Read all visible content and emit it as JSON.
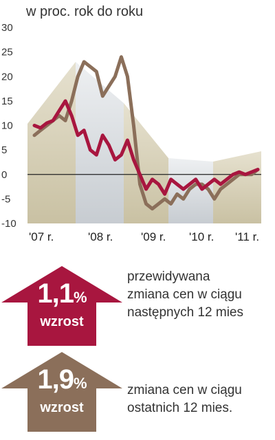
{
  "chart_data": {
    "type": "line",
    "subtitle": "w proc. rok do roku",
    "ylim": [
      -10,
      30
    ],
    "yticks": [
      "30",
      "25",
      "20",
      "15",
      "10",
      "5",
      "0",
      "-5",
      "-10"
    ],
    "yvalues": [
      30,
      25,
      20,
      15,
      10,
      5,
      0,
      -5,
      -10
    ],
    "xlabels": [
      "'07 r.",
      "'08 r.",
      "'09 r.",
      "'10 r.",
      "'11 r."
    ],
    "series": [
      {
        "color": "#a8163f",
        "points": [
          [
            0,
            10
          ],
          [
            1,
            9.5
          ],
          [
            2,
            10.5
          ],
          [
            3,
            11
          ],
          [
            4,
            13
          ],
          [
            5,
            15
          ],
          [
            6,
            12
          ],
          [
            7,
            8
          ],
          [
            8,
            9
          ],
          [
            9,
            5
          ],
          [
            10,
            4
          ],
          [
            11,
            8
          ],
          [
            12,
            6
          ],
          [
            13,
            3
          ],
          [
            14,
            4
          ],
          [
            15,
            7
          ],
          [
            16,
            3
          ],
          [
            17,
            0
          ],
          [
            18,
            -3
          ],
          [
            19,
            -1
          ],
          [
            20,
            -2
          ],
          [
            21,
            -4
          ],
          [
            22,
            -1
          ],
          [
            23,
            -2
          ],
          [
            24,
            -3
          ],
          [
            25,
            -2
          ],
          [
            26,
            -1
          ],
          [
            27,
            -3
          ],
          [
            28,
            -2
          ],
          [
            29,
            -1
          ],
          [
            30,
            -2
          ],
          [
            31,
            -1
          ],
          [
            32,
            0
          ],
          [
            33,
            0.5
          ],
          [
            34,
            0
          ],
          [
            35,
            0.5
          ],
          [
            36,
            1
          ]
        ]
      },
      {
        "color": "#8b6f5a",
        "points": [
          [
            0,
            8
          ],
          [
            1,
            9
          ],
          [
            2,
            10
          ],
          [
            3,
            11
          ],
          [
            4,
            12
          ],
          [
            5,
            11
          ],
          [
            6,
            15
          ],
          [
            7,
            20
          ],
          [
            8,
            23
          ],
          [
            9,
            22
          ],
          [
            10,
            21
          ],
          [
            11,
            16
          ],
          [
            12,
            18
          ],
          [
            13,
            20
          ],
          [
            14,
            24
          ],
          [
            15,
            20
          ],
          [
            16,
            10
          ],
          [
            17,
            -2
          ],
          [
            18,
            -6
          ],
          [
            19,
            -7
          ],
          [
            20,
            -6
          ],
          [
            21,
            -5
          ],
          [
            22,
            -6
          ],
          [
            23,
            -4
          ],
          [
            24,
            -5
          ],
          [
            25,
            -3
          ],
          [
            26,
            -2
          ],
          [
            27,
            -2
          ],
          [
            28,
            -3
          ],
          [
            29,
            -5
          ],
          [
            30,
            -3
          ],
          [
            31,
            -2
          ],
          [
            32,
            -1
          ],
          [
            33,
            0
          ],
          [
            34,
            0
          ],
          [
            35,
            0
          ],
          [
            36,
            1
          ]
        ]
      }
    ]
  },
  "legend": [
    {
      "value": "1,1",
      "unit": "%",
      "label": "wzrost",
      "color": "#a8163f",
      "description": "przewidywana\nzmiana cen w ciągu\nnastępnych 12 mies"
    },
    {
      "value": "1,9",
      "unit": "%",
      "label": "wzrost",
      "color": "#8b6f5a",
      "description": "zmiana cen w ciągu\nostatnich 12 mies."
    }
  ]
}
